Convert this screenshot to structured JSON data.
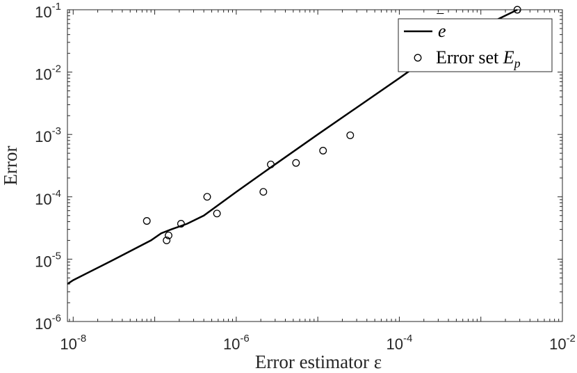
{
  "chart_data": {
    "type": "line",
    "xlabel": "Error estimator ε",
    "ylabel": "Error",
    "xscale": "log",
    "yscale": "log",
    "xlim": [
      8.5e-09,
      0.01
    ],
    "ylim": [
      1e-06,
      0.1
    ],
    "grid": false,
    "legend_position": "top-right",
    "x_ticks": [
      {
        "base": "10",
        "exp": "-8",
        "value": 1e-08
      },
      {
        "base": "10",
        "exp": "-6",
        "value": 1e-06
      },
      {
        "base": "10",
        "exp": "-4",
        "value": 0.0001
      },
      {
        "base": "10",
        "exp": "-2",
        "value": 0.01
      }
    ],
    "y_ticks": [
      {
        "base": "10",
        "exp": "-6",
        "value": 1e-06
      },
      {
        "base": "10",
        "exp": "-5",
        "value": 1e-05
      },
      {
        "base": "10",
        "exp": "-4",
        "value": 0.0001
      },
      {
        "base": "10",
        "exp": "-3",
        "value": 0.001
      },
      {
        "base": "10",
        "exp": "-2",
        "value": 0.01
      },
      {
        "base": "10",
        "exp": "-1",
        "value": 0.1
      }
    ],
    "series": [
      {
        "name": "ē",
        "kind": "line",
        "color": "#000000",
        "points": [
          [
            8.5e-09,
            4e-06
          ],
          [
            1e-08,
            4.6e-06
          ],
          [
            3e-08,
            9.5e-06
          ],
          [
            9e-08,
            2e-05
          ],
          [
            1.2e-07,
            2.6e-05
          ],
          [
            1.6e-07,
            3e-05
          ],
          [
            2.5e-07,
            3.7e-05
          ],
          [
            4e-07,
            5e-05
          ],
          [
            1e-06,
            0.00012
          ],
          [
            2.5e-06,
            0.00028
          ],
          [
            1e-05,
            0.001
          ],
          [
            0.0001,
            0.008
          ],
          [
            0.0004,
            0.029
          ],
          [
            0.0028,
            0.1
          ]
        ]
      },
      {
        "name": "Error set E_p",
        "label_main": "Error set ",
        "label_var": "E",
        "label_sub": "p",
        "kind": "scatter",
        "marker": "circle-open",
        "color": "#000000",
        "points": [
          [
            8e-08,
            4.1e-05
          ],
          [
            1.4e-07,
            2e-05
          ],
          [
            1.48e-07,
            2.4e-05
          ],
          [
            2.1e-07,
            3.7e-05
          ],
          [
            4.4e-07,
            0.0001
          ],
          [
            5.8e-07,
            5.4e-05
          ],
          [
            2.15e-06,
            0.00012
          ],
          [
            2.65e-06,
            0.00033
          ],
          [
            5.4e-06,
            0.00035
          ],
          [
            1.16e-05,
            0.00055
          ],
          [
            2.5e-05,
            0.00097
          ],
          [
            0.0028,
            0.1
          ]
        ]
      }
    ],
    "legend": {
      "line_label_symbol": "e",
      "line_label_bar": "‾"
    }
  }
}
